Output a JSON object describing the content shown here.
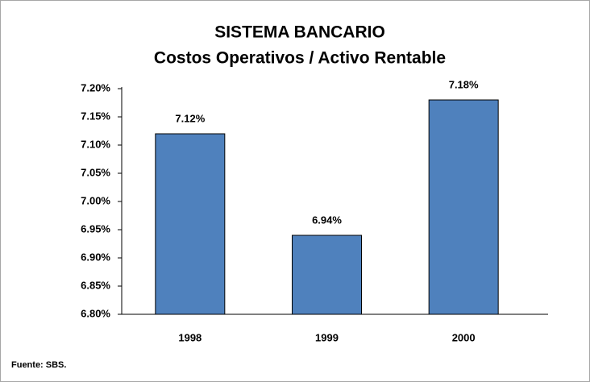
{
  "chart_data": {
    "type": "bar",
    "title": "SISTEMA BANCARIO",
    "subtitle": "Costos Operativos / Activo Rentable",
    "categories": [
      "1998",
      "1999",
      "2000"
    ],
    "values": [
      7.12,
      6.94,
      7.18
    ],
    "value_labels": [
      "7.12%",
      "6.94%",
      "7.18%"
    ],
    "color": "#4f81bd",
    "ylim": [
      6.8,
      7.2
    ],
    "yticks": [
      {
        "value": 6.8,
        "label": "6.80%"
      },
      {
        "value": 6.85,
        "label": "6.85%"
      },
      {
        "value": 6.9,
        "label": "6.90%"
      },
      {
        "value": 6.95,
        "label": "6.95%"
      },
      {
        "value": 7.0,
        "label": "7.00%"
      },
      {
        "value": 7.05,
        "label": "7.05%"
      },
      {
        "value": 7.1,
        "label": "7.10%"
      },
      {
        "value": 7.15,
        "label": "7.15%"
      },
      {
        "value": 7.2,
        "label": "7.20%"
      }
    ],
    "grid": false,
    "source": "Fuente: SBS."
  }
}
